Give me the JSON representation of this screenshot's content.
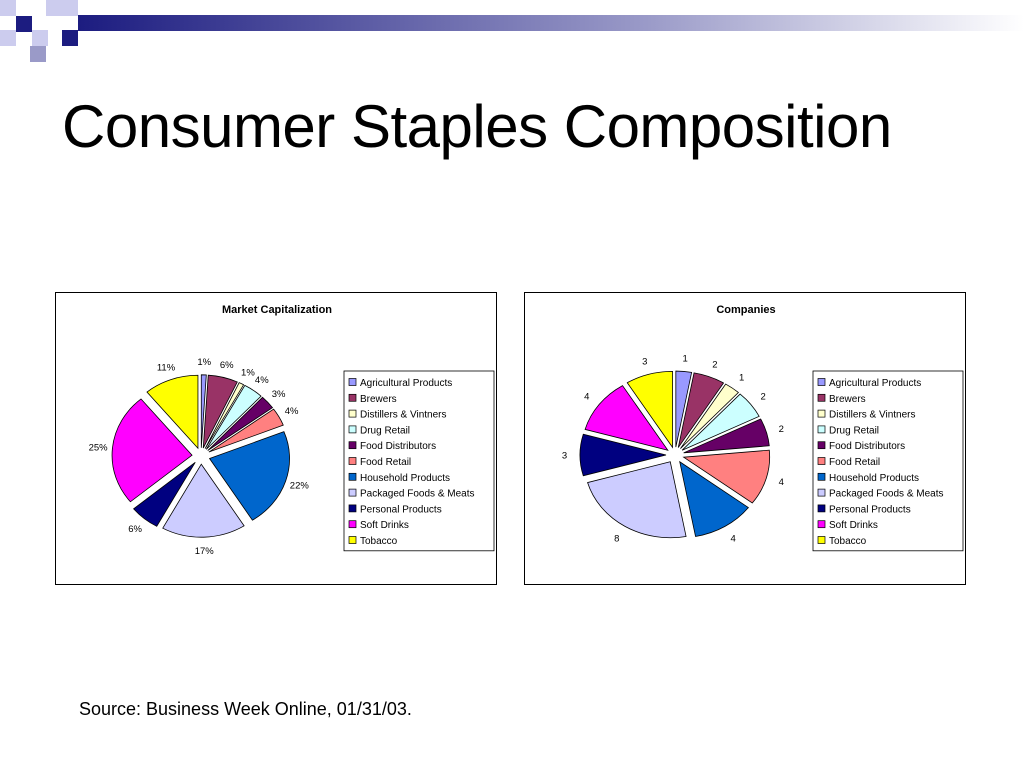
{
  "slide": {
    "title": "Consumer Staples Composition",
    "source": "Source: Business Week Online, 01/31/03."
  },
  "chart_data": [
    {
      "type": "pie",
      "title": "Market Capitalization",
      "legend_position": "right",
      "categories": [
        "Agricultural Products",
        "Brewers",
        "Distillers & Vintners",
        "Drug Retail",
        "Food Distributors",
        "Food Retail",
        "Household Products",
        "Packaged Foods & Meats",
        "Personal Products",
        "Soft Drinks",
        "Tobacco"
      ],
      "values": [
        1,
        6,
        1,
        4,
        3,
        4,
        22,
        17,
        6,
        25,
        11
      ],
      "labels": [
        "1%",
        "6%",
        "1%",
        "4%",
        "3%",
        "4%",
        "22%",
        "17%",
        "6%",
        "25%",
        "11%"
      ],
      "colors": [
        "#9999FF",
        "#993366",
        "#FFFFCC",
        "#CCFFFF",
        "#660066",
        "#FF8080",
        "#0066CC",
        "#CCCCFF",
        "#000080",
        "#FF00FF",
        "#FFFF00"
      ]
    },
    {
      "type": "pie",
      "title": "Companies",
      "legend_position": "right",
      "categories": [
        "Agricultural Products",
        "Brewers",
        "Distillers & Vintners",
        "Drug Retail",
        "Food Distributors",
        "Food Retail",
        "Household Products",
        "Packaged Foods & Meats",
        "Personal Products",
        "Soft Drinks",
        "Tobacco"
      ],
      "values": [
        1,
        2,
        1,
        2,
        2,
        4,
        4,
        8,
        3,
        4,
        3
      ],
      "labels": [
        "1",
        "2",
        "1",
        "2",
        "2",
        "4",
        "4",
        "8",
        "3",
        "4",
        "3"
      ],
      "colors": [
        "#9999FF",
        "#993366",
        "#FFFFCC",
        "#CCFFFF",
        "#660066",
        "#FF8080",
        "#0066CC",
        "#CCCCFF",
        "#000080",
        "#FF00FF",
        "#FFFF00"
      ]
    }
  ]
}
